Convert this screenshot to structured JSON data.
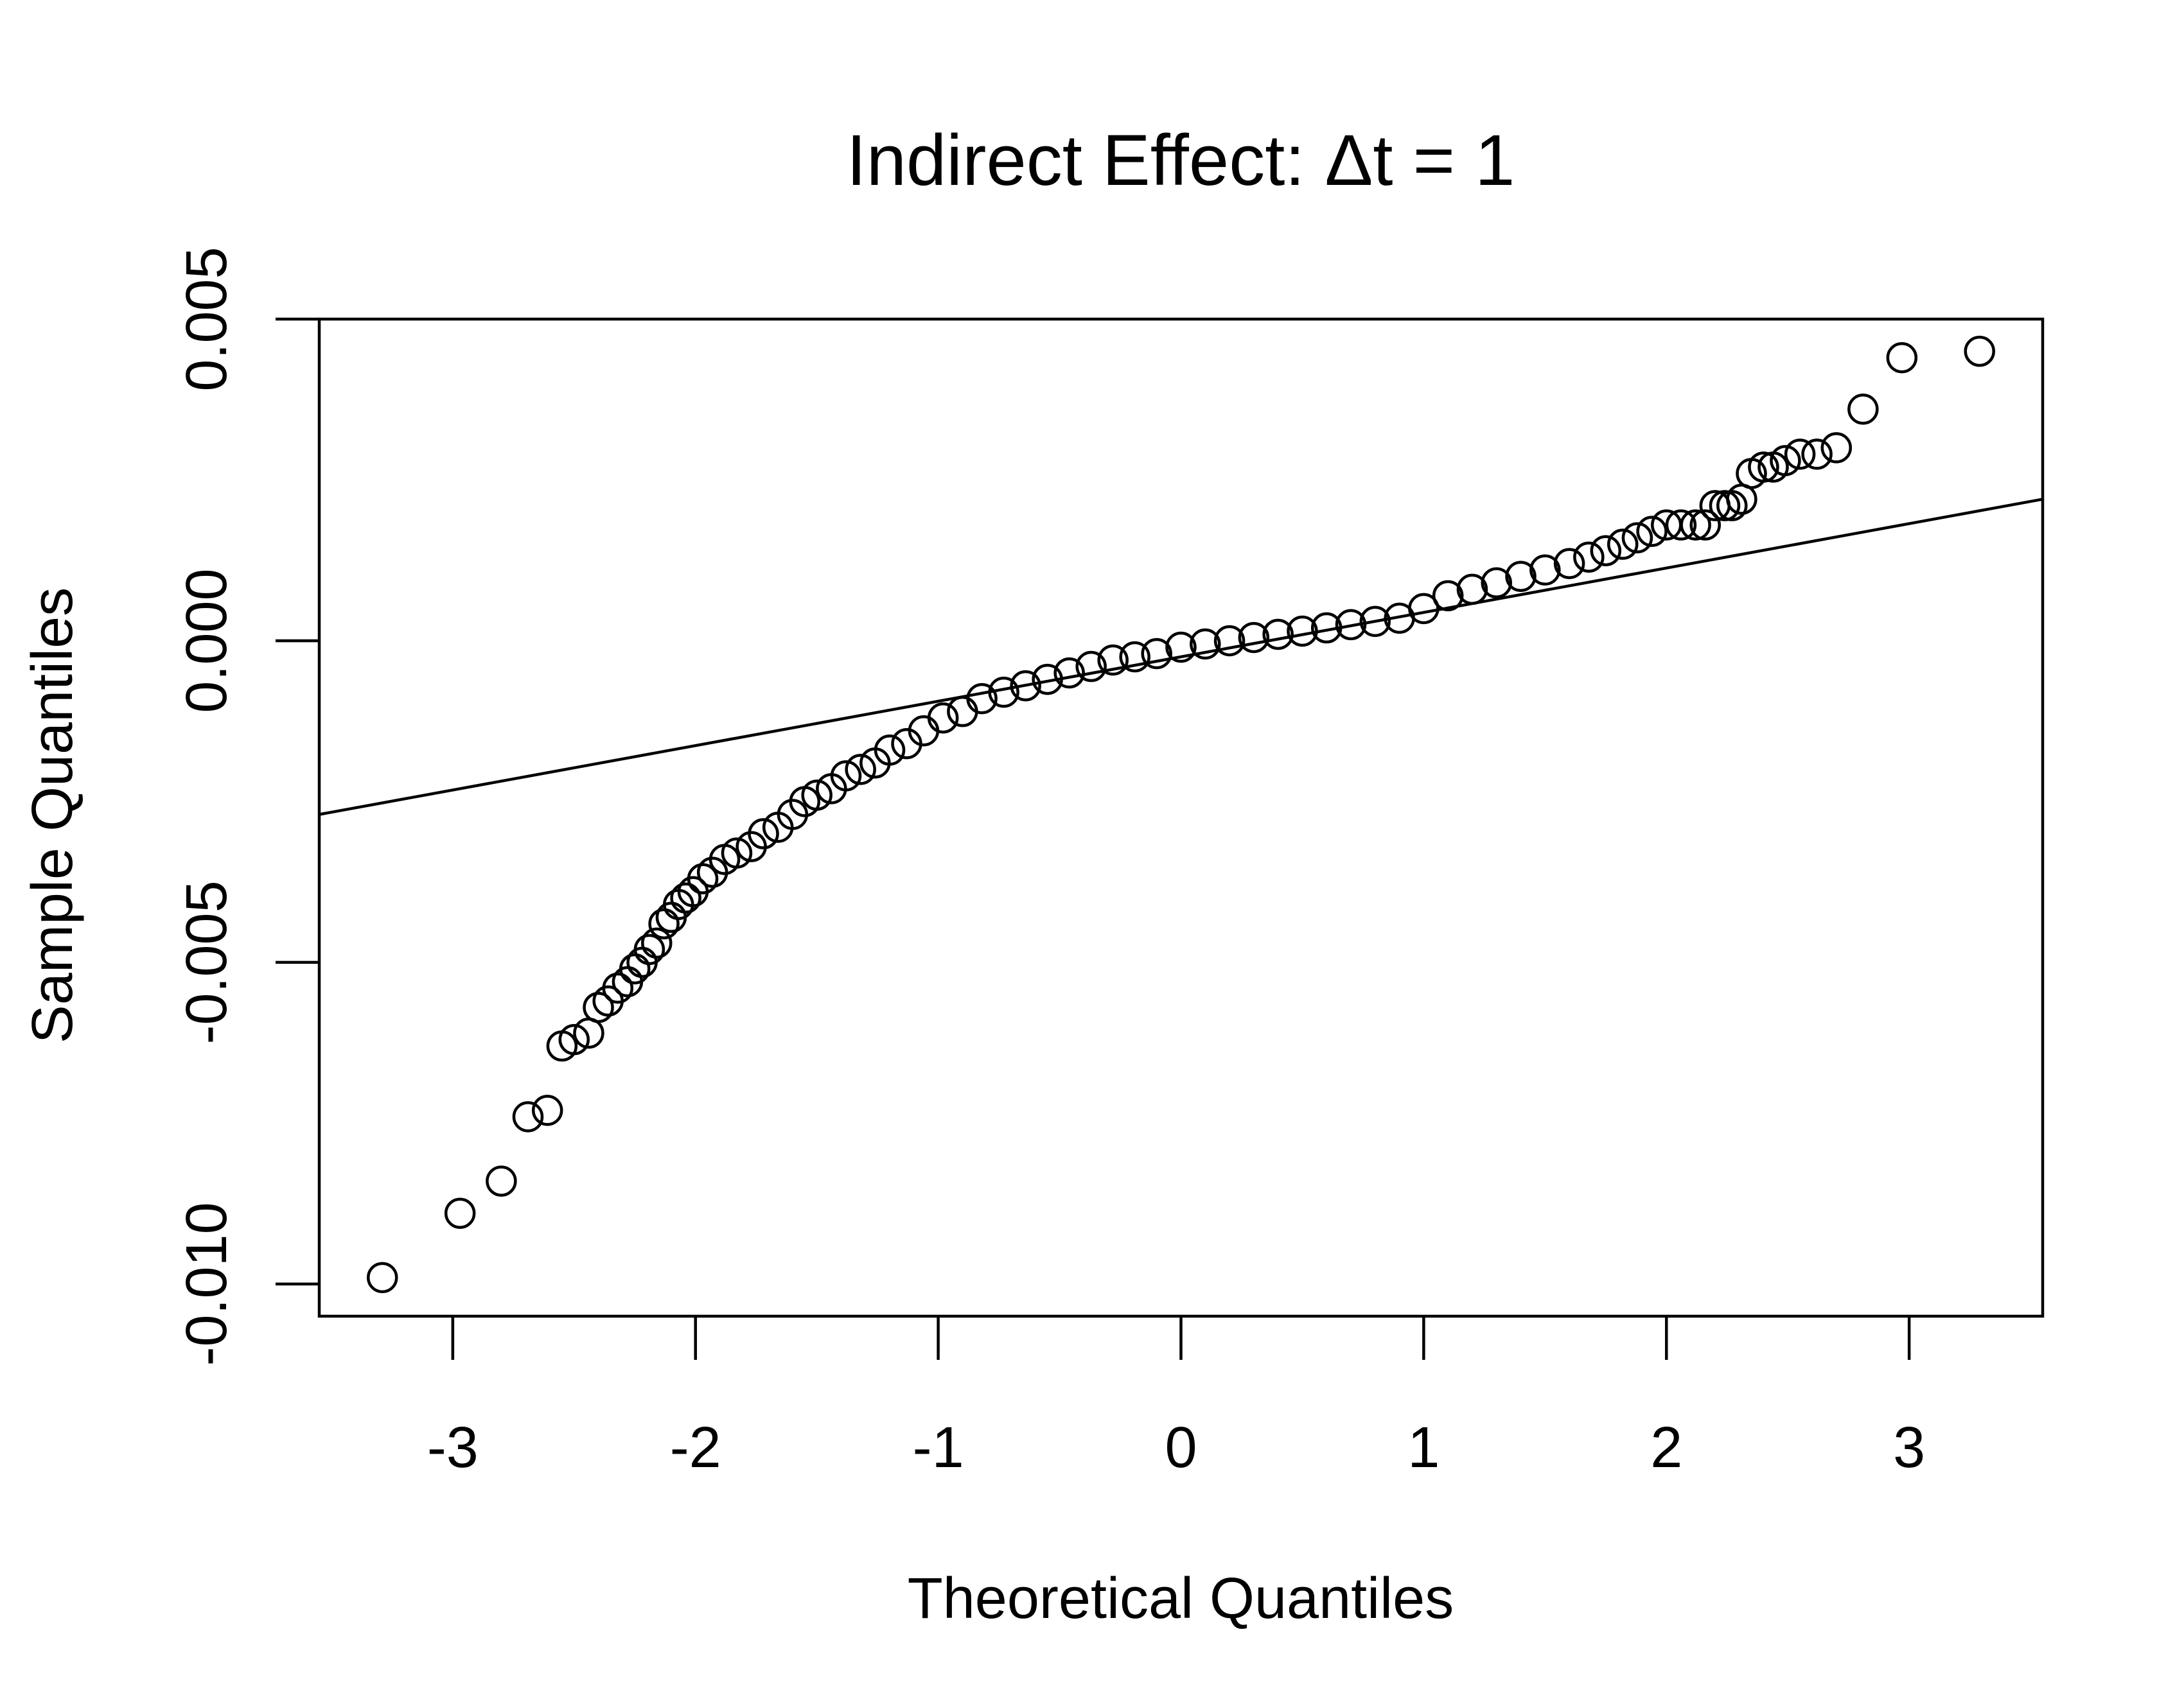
{
  "chart_data": {
    "type": "scatter",
    "title": "Indirect Effect:  Δt = 1",
    "xlabel": "Theoretical Quantiles",
    "ylabel": "Sample Quantiles",
    "xlim": [
      -3.55,
      3.55
    ],
    "ylim": [
      -0.0105,
      0.005
    ],
    "x_ticks": [
      -3,
      -2,
      -1,
      0,
      1,
      2,
      3
    ],
    "x_tick_labels": [
      "-3",
      "-2",
      "-1",
      "0",
      "1",
      "2",
      "3"
    ],
    "y_ticks": [
      -0.01,
      -0.005,
      0.0,
      0.005
    ],
    "y_tick_labels": [
      "-0.010",
      "-0.005",
      "0.000",
      "0.005"
    ],
    "grid": false,
    "legend": "none",
    "marker": "open-circle",
    "reference_line": {
      "type": "qqline",
      "points": [
        [
          -3.55,
          -0.0027
        ],
        [
          3.55,
          0.0022
        ]
      ]
    },
    "series": [
      {
        "points": [
          [
            -3.29,
            -0.0099
          ],
          [
            -2.97,
            -0.0089
          ],
          [
            -2.8,
            -0.0084
          ],
          [
            -2.69,
            -0.0074
          ],
          [
            -2.61,
            -0.0073
          ],
          [
            -2.55,
            -0.0063
          ],
          [
            -2.5,
            -0.0062
          ],
          [
            -2.44,
            -0.0061
          ],
          [
            -2.4,
            -0.0057
          ],
          [
            -2.36,
            -0.0056
          ],
          [
            -2.32,
            -0.0054
          ],
          [
            -2.28,
            -0.0053
          ],
          [
            -2.25,
            -0.0051
          ],
          [
            -2.22,
            -0.005
          ],
          [
            -2.19,
            -0.0048
          ],
          [
            -2.16,
            -0.0047
          ],
          [
            -2.13,
            -0.0044
          ],
          [
            -2.1,
            -0.0043
          ],
          [
            -2.07,
            -0.0041
          ],
          [
            -2.04,
            -0.004
          ],
          [
            -2.01,
            -0.0039
          ],
          [
            -1.97,
            -0.0037
          ],
          [
            -1.93,
            -0.0036
          ],
          [
            -1.88,
            -0.0034
          ],
          [
            -1.83,
            -0.0033
          ],
          [
            -1.77,
            -0.0032
          ],
          [
            -1.72,
            -0.003
          ],
          [
            -1.66,
            -0.0029
          ],
          [
            -1.6,
            -0.0027
          ],
          [
            -1.55,
            -0.0025
          ],
          [
            -1.5,
            -0.0024
          ],
          [
            -1.44,
            -0.0023
          ],
          [
            -1.38,
            -0.0021
          ],
          [
            -1.32,
            -0.002
          ],
          [
            -1.26,
            -0.0019
          ],
          [
            -1.2,
            -0.0017
          ],
          [
            -1.13,
            -0.0016
          ],
          [
            -1.06,
            -0.0014
          ],
          [
            -0.98,
            -0.0012
          ],
          [
            -0.9,
            -0.0011
          ],
          [
            -0.82,
            -0.0009
          ],
          [
            -0.73,
            -0.0008
          ],
          [
            -0.64,
            -0.0007
          ],
          [
            -0.55,
            -0.0006
          ],
          [
            -0.46,
            -0.0005
          ],
          [
            -0.37,
            -0.0004
          ],
          [
            -0.28,
            -0.0003
          ],
          [
            -0.19,
            -0.00025
          ],
          [
            -0.1,
            -0.0002
          ],
          [
            0.0,
            -0.0001
          ],
          [
            0.1,
            -5e-05
          ],
          [
            0.2,
            0.0
          ],
          [
            0.3,
            5e-05
          ],
          [
            0.4,
            0.0001
          ],
          [
            0.5,
            0.00015
          ],
          [
            0.6,
            0.0002
          ],
          [
            0.7,
            0.00025
          ],
          [
            0.8,
            0.0003
          ],
          [
            0.9,
            0.00035
          ],
          [
            1.0,
            0.0005
          ],
          [
            1.1,
            0.0007
          ],
          [
            1.2,
            0.0008
          ],
          [
            1.3,
            0.0009
          ],
          [
            1.4,
            0.001
          ],
          [
            1.5,
            0.0011
          ],
          [
            1.6,
            0.0012
          ],
          [
            1.68,
            0.0013
          ],
          [
            1.75,
            0.0014
          ],
          [
            1.82,
            0.0015
          ],
          [
            1.88,
            0.0016
          ],
          [
            1.94,
            0.0017
          ],
          [
            2.0,
            0.0018
          ],
          [
            2.06,
            0.0018
          ],
          [
            2.12,
            0.0018
          ],
          [
            2.16,
            0.0018
          ],
          [
            2.2,
            0.0021
          ],
          [
            2.24,
            0.0021
          ],
          [
            2.27,
            0.0021
          ],
          [
            2.31,
            0.0022
          ],
          [
            2.35,
            0.0026
          ],
          [
            2.4,
            0.0027
          ],
          [
            2.44,
            0.0027
          ],
          [
            2.49,
            0.0028
          ],
          [
            2.55,
            0.0029
          ],
          [
            2.62,
            0.0029
          ],
          [
            2.7,
            0.003
          ],
          [
            2.81,
            0.0036
          ],
          [
            2.97,
            0.0044
          ],
          [
            3.29,
            0.0045
          ]
        ]
      }
    ]
  }
}
